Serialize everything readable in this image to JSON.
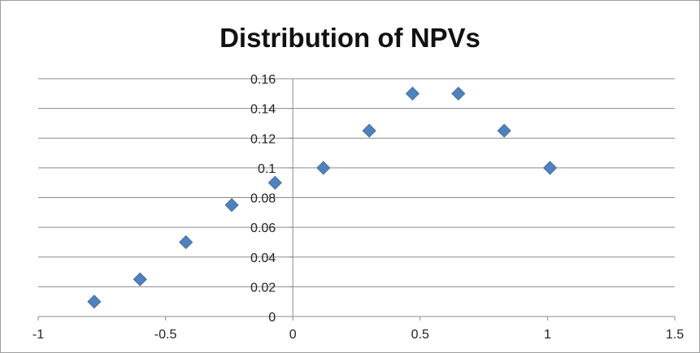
{
  "chart_data": {
    "type": "scatter",
    "title": "Distribution of NPVs",
    "xlabel": "",
    "ylabel": "",
    "xlim": [
      -1,
      1.5
    ],
    "ylim": [
      0,
      0.16
    ],
    "x_ticks": [
      -1,
      -0.5,
      0,
      0.5,
      1,
      1.5
    ],
    "x_tick_labels": [
      "-1",
      "-0.5",
      "0",
      "0.5",
      "1",
      "1.5"
    ],
    "y_ticks": [
      0,
      0.02,
      0.04,
      0.06,
      0.08,
      0.1,
      0.12,
      0.14,
      0.16
    ],
    "y_tick_labels": [
      "0",
      "0.02",
      "0.04",
      "0.06",
      "0.08",
      "0.1",
      "0.12",
      "0.14",
      "0.16"
    ],
    "grid": "horizontal",
    "legend": "none",
    "marker": "diamond",
    "marker_color": "#4f81bd",
    "series": [
      {
        "x": [
          -0.78,
          -0.6,
          -0.42,
          -0.24,
          -0.07,
          0.12,
          0.3,
          0.47,
          0.65,
          0.83,
          1.01
        ],
        "y": [
          0.01,
          0.025,
          0.05,
          0.075,
          0.09,
          0.1,
          0.125,
          0.15,
          0.15,
          0.125,
          0.1
        ]
      }
    ]
  }
}
